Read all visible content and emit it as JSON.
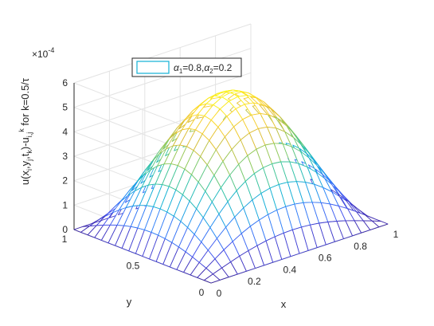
{
  "chart_data": {
    "type": "surface",
    "title": "",
    "xlabel": "x",
    "ylabel": "y",
    "zlabel": "u(x_i,y_j,t_k)-u_{i,j}^k for k=0.5/τ",
    "z_exponent_label": "×10^-4",
    "xlim": [
      0,
      1
    ],
    "ylim": [
      0,
      1
    ],
    "zlim": [
      0,
      6
    ],
    "x_ticks": [
      "0",
      "0.2",
      "0.4",
      "0.6",
      "0.8",
      "1"
    ],
    "y_ticks": [
      "0",
      "0.5",
      "1"
    ],
    "z_ticks": [
      "0",
      "1",
      "2",
      "3",
      "4",
      "5",
      "6"
    ],
    "grid": true,
    "mesh_points_per_axis": 21,
    "peak": 5.5,
    "function": "peak * sin(pi*x) * sin(pi*y)",
    "colormap": [
      "#3e26a8",
      "#4755f0",
      "#2c87fa",
      "#12b1d5",
      "#36c4a0",
      "#8cca5b",
      "#ddbd37",
      "#fdd42c",
      "#f9fb15"
    ],
    "legend": {
      "placement": "top-center",
      "entries": [
        {
          "label": "α_1=0.8,α_2=0.2",
          "color": "#12b1d5"
        }
      ]
    }
  }
}
